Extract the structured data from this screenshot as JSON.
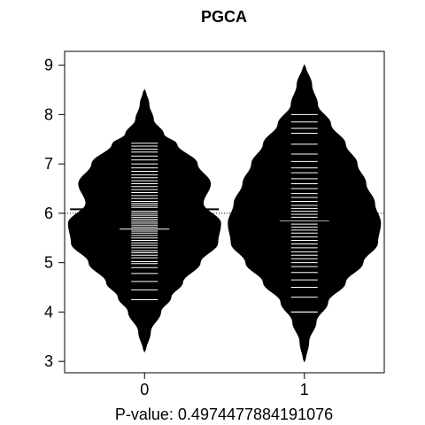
{
  "chart_data": {
    "type": "beanplot",
    "title": "PGCA",
    "xlabel": "P-value: 0.4974477884191076",
    "ylabel": "",
    "categories": [
      "0",
      "1"
    ],
    "ylim": [
      2.77,
      9.28
    ],
    "xlim": [
      0.5,
      2.5
    ],
    "yticks": [
      3,
      4,
      5,
      6,
      7,
      8,
      9
    ],
    "overall_mean": 6.0,
    "grid": false,
    "legend": "none",
    "beans": [
      {
        "category": "0",
        "mean": 6.08,
        "median": 5.68,
        "quantile_line": 4.25,
        "density": [
          [
            3.2,
            0.006
          ],
          [
            3.6,
            0.04
          ],
          [
            4.0,
            0.11
          ],
          [
            4.3,
            0.18
          ],
          [
            4.6,
            0.26
          ],
          [
            5.0,
            0.38
          ],
          [
            5.4,
            0.5
          ],
          [
            5.8,
            0.52
          ],
          [
            6.2,
            0.4
          ],
          [
            6.6,
            0.45
          ],
          [
            7.0,
            0.36
          ],
          [
            7.4,
            0.22
          ],
          [
            7.6,
            0.13
          ],
          [
            7.9,
            0.06
          ],
          [
            8.2,
            0.03
          ],
          [
            8.5,
            0.006
          ]
        ],
        "points": [
          4.25,
          4.45,
          4.62,
          4.78,
          4.9,
          4.98,
          5.02,
          5.1,
          5.15,
          5.2,
          5.24,
          5.3,
          5.35,
          5.4,
          5.45,
          5.5,
          5.55,
          5.6,
          5.64,
          5.68,
          5.72,
          5.76,
          5.8,
          5.84,
          5.88,
          5.92,
          5.96,
          6.0,
          6.04,
          6.08,
          6.12,
          6.16,
          6.2,
          6.24,
          6.3,
          6.36,
          6.42,
          6.48,
          6.54,
          6.6,
          6.66,
          6.72,
          6.78,
          6.85,
          6.92,
          7.0,
          7.08,
          7.16,
          7.24,
          7.3,
          7.36,
          7.42
        ]
      },
      {
        "category": "1",
        "mean": 5.87,
        "median": 5.85,
        "quantile_line": 4.0,
        "density": [
          [
            3.0,
            0.006
          ],
          [
            3.4,
            0.03
          ],
          [
            3.8,
            0.08
          ],
          [
            4.2,
            0.16
          ],
          [
            4.6,
            0.28
          ],
          [
            5.0,
            0.4
          ],
          [
            5.4,
            0.5
          ],
          [
            5.8,
            0.52
          ],
          [
            6.2,
            0.48
          ],
          [
            6.6,
            0.42
          ],
          [
            7.0,
            0.36
          ],
          [
            7.4,
            0.28
          ],
          [
            7.8,
            0.18
          ],
          [
            8.2,
            0.09
          ],
          [
            8.6,
            0.05
          ],
          [
            9.0,
            0.006
          ]
        ],
        "points": [
          4.0,
          4.3,
          4.5,
          4.65,
          4.8,
          4.92,
          5.0,
          5.08,
          5.15,
          5.22,
          5.3,
          5.38,
          5.45,
          5.52,
          5.6,
          5.66,
          5.72,
          5.78,
          5.85,
          5.92,
          5.98,
          6.04,
          6.1,
          6.16,
          6.24,
          6.32,
          6.4,
          6.5,
          6.6,
          6.7,
          6.82,
          6.92,
          7.05,
          7.2,
          7.4,
          7.62,
          7.72,
          7.85,
          8.0
        ]
      }
    ]
  }
}
